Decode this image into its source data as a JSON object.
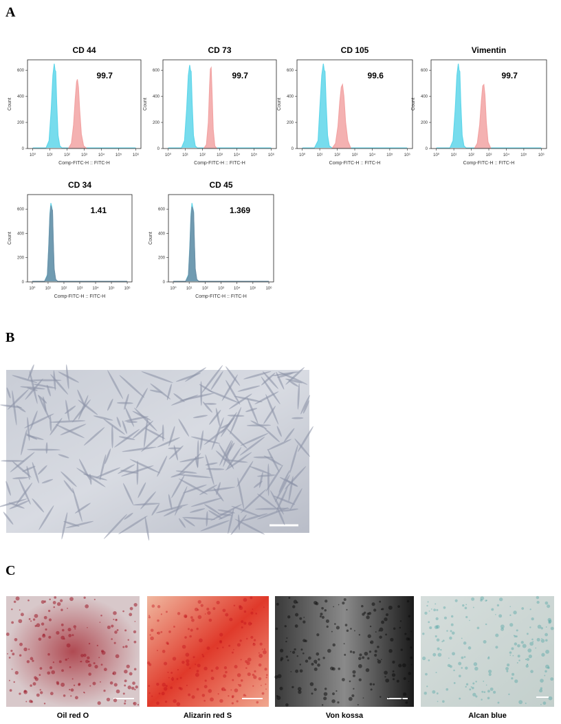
{
  "panels": {
    "a": {
      "label": "A"
    },
    "b": {
      "label": "B"
    },
    "c": {
      "label": "C",
      "captions": [
        "Oil red O",
        "Alizarin red S",
        "Von kossa",
        "Alcan blue"
      ]
    }
  },
  "chart_data": [
    {
      "type": "histogram-overlay",
      "title": "CD 44",
      "annotation": "99.7",
      "x_label": "Comp-FITC-H :: FITC-H",
      "y_label": "Count",
      "x_log": true,
      "xlim": [
        0.5,
        2000000
      ],
      "ylim": [
        0,
        680
      ],
      "xticks": [
        {
          "value": 1,
          "label": "10⁰"
        },
        {
          "value": 10,
          "label": "10¹"
        },
        {
          "value": 100,
          "label": "10²"
        },
        {
          "value": 1000,
          "label": "10³"
        },
        {
          "value": 10000,
          "label": "10⁴"
        },
        {
          "value": 100000,
          "label": "10⁵"
        },
        {
          "value": 1000000,
          "label": "10⁶"
        }
      ],
      "yticks": [
        0,
        200,
        400,
        600
      ],
      "series": [
        {
          "color": "#5fd6ea",
          "x": [
            1,
            6,
            9,
            12,
            15,
            18,
            20,
            22,
            25,
            30,
            38,
            50,
            1000000
          ],
          "values": [
            5,
            5,
            60,
            300,
            560,
            650,
            600,
            590,
            350,
            100,
            20,
            5,
            5
          ]
        },
        {
          "color": "#f2a3a3",
          "x": [
            120,
            180,
            240,
            300,
            360,
            400,
            460,
            540,
            680,
            920,
            1400
          ],
          "values": [
            0,
            40,
            180,
            380,
            510,
            530,
            470,
            300,
            110,
            20,
            0
          ]
        }
      ]
    },
    {
      "type": "histogram-overlay",
      "title": "CD 73",
      "annotation": "99.7",
      "x_label": "Comp-FITC-H :: FITC-H",
      "y_label": "Count",
      "x_log": true,
      "xlim": [
        0.5,
        2000000
      ],
      "ylim": [
        0,
        680
      ],
      "xticks": [
        {
          "value": 1,
          "label": "10⁰"
        },
        {
          "value": 10,
          "label": "10¹"
        },
        {
          "value": 100,
          "label": "10²"
        },
        {
          "value": 1000,
          "label": "10³"
        },
        {
          "value": 10000,
          "label": "10⁴"
        },
        {
          "value": 100000,
          "label": "10⁵"
        },
        {
          "value": 1000000,
          "label": "10⁶"
        }
      ],
      "yticks": [
        0,
        200,
        400,
        600
      ],
      "series": [
        {
          "color": "#5fd6ea",
          "x": [
            1,
            6,
            9,
            12,
            15,
            18,
            20,
            22,
            25,
            30,
            38,
            50,
            1000000
          ],
          "values": [
            5,
            5,
            60,
            300,
            560,
            640,
            600,
            590,
            350,
            100,
            20,
            5,
            5
          ]
        },
        {
          "color": "#f2a3a3",
          "x": [
            120,
            170,
            220,
            260,
            290,
            320,
            360,
            420,
            520,
            700
          ],
          "values": [
            0,
            30,
            200,
            480,
            610,
            620,
            430,
            150,
            20,
            0
          ]
        }
      ]
    },
    {
      "type": "histogram-overlay",
      "title": "CD 105",
      "annotation": "99.6",
      "x_label": "Comp-FITC-H :: FITC-H",
      "y_label": "Count",
      "x_log": true,
      "xlim": [
        0.5,
        2000000
      ],
      "ylim": [
        0,
        680
      ],
      "xticks": [
        {
          "value": 1,
          "label": "10⁰"
        },
        {
          "value": 10,
          "label": "10¹"
        },
        {
          "value": 100,
          "label": "10²"
        },
        {
          "value": 1000,
          "label": "10³"
        },
        {
          "value": 10000,
          "label": "10⁴"
        },
        {
          "value": 100000,
          "label": "10⁵"
        },
        {
          "value": 1000000,
          "label": "10⁶"
        }
      ],
      "yticks": [
        0,
        200,
        400,
        600
      ],
      "series": [
        {
          "color": "#5fd6ea",
          "x": [
            1,
            5,
            8,
            10,
            13,
            16,
            18,
            20,
            23,
            28,
            35,
            50,
            1000000
          ],
          "values": [
            5,
            5,
            60,
            300,
            560,
            650,
            600,
            590,
            350,
            100,
            20,
            5,
            5
          ]
        },
        {
          "color": "#f2a3a3",
          "x": [
            50,
            80,
            110,
            140,
            170,
            200,
            240,
            300,
            400,
            600
          ],
          "values": [
            0,
            40,
            170,
            360,
            470,
            490,
            400,
            200,
            60,
            0
          ]
        }
      ]
    },
    {
      "type": "histogram-overlay",
      "title": "Vimentin",
      "annotation": "99.7",
      "x_label": "Comp-FITC-H :: FITC-H",
      "y_label": "Count",
      "x_log": true,
      "xlim": [
        0.5,
        2000000
      ],
      "ylim": [
        0,
        680
      ],
      "xticks": [
        {
          "value": 1,
          "label": "10⁰"
        },
        {
          "value": 10,
          "label": "10¹"
        },
        {
          "value": 100,
          "label": "10²"
        },
        {
          "value": 1000,
          "label": "10³"
        },
        {
          "value": 10000,
          "label": "10⁴"
        },
        {
          "value": 100000,
          "label": "10⁵"
        },
        {
          "value": 1000000,
          "label": "10⁶"
        }
      ],
      "yticks": [
        0,
        200,
        400,
        600
      ],
      "series": [
        {
          "color": "#5fd6ea",
          "x": [
            1,
            6,
            9,
            12,
            15,
            18,
            20,
            22,
            25,
            30,
            38,
            50,
            1000000
          ],
          "values": [
            5,
            5,
            60,
            300,
            560,
            650,
            600,
            590,
            350,
            100,
            20,
            5,
            5
          ]
        },
        {
          "color": "#f2a3a3",
          "x": [
            150,
            220,
            300,
            380,
            450,
            520,
            600,
            720,
            900,
            1300
          ],
          "values": [
            0,
            40,
            180,
            370,
            480,
            490,
            410,
            200,
            50,
            0
          ]
        }
      ]
    },
    {
      "type": "histogram-overlay",
      "title": "CD 34",
      "annotation": "1.41",
      "x_label": "Comp-FITC-H :: FITC-H",
      "y_label": "Count",
      "x_log": true,
      "xlim": [
        0.5,
        2000000
      ],
      "ylim": [
        0,
        720
      ],
      "xticks": [
        {
          "value": 1,
          "label": "10⁰"
        },
        {
          "value": 10,
          "label": "10¹"
        },
        {
          "value": 100,
          "label": "10²"
        },
        {
          "value": 1000,
          "label": "10³"
        },
        {
          "value": 10000,
          "label": "10⁴"
        },
        {
          "value": 100000,
          "label": "10⁵"
        },
        {
          "value": 1000000,
          "label": "10⁶"
        }
      ],
      "yticks": [
        0,
        200,
        400,
        600
      ],
      "series": [
        {
          "color": "#5fd6ea",
          "x": [
            1,
            6,
            9,
            11,
            13,
            15,
            17,
            19,
            21,
            24,
            30,
            40,
            1000000
          ],
          "values": [
            5,
            5,
            60,
            300,
            560,
            650,
            620,
            580,
            350,
            100,
            20,
            5,
            5
          ]
        },
        {
          "color": "#6e8fa6",
          "x": [
            1,
            6,
            9,
            11,
            13,
            15,
            17,
            19,
            21,
            24,
            30,
            40,
            1000000
          ],
          "values": [
            5,
            5,
            50,
            280,
            540,
            630,
            600,
            590,
            360,
            110,
            20,
            5,
            5
          ]
        }
      ]
    },
    {
      "type": "histogram-overlay",
      "title": "CD 45",
      "annotation": "1.369",
      "x_label": "Comp-FITC-H :: FITC-H",
      "y_label": "Count",
      "x_log": true,
      "xlim": [
        0.5,
        2000000
      ],
      "ylim": [
        0,
        720
      ],
      "xticks": [
        {
          "value": 1,
          "label": "10⁰"
        },
        {
          "value": 10,
          "label": "10¹"
        },
        {
          "value": 100,
          "label": "10²"
        },
        {
          "value": 1000,
          "label": "10³"
        },
        {
          "value": 10000,
          "label": "10⁴"
        },
        {
          "value": 100000,
          "label": "10⁵"
        },
        {
          "value": 1000000,
          "label": "10⁶"
        }
      ],
      "yticks": [
        0,
        200,
        400,
        600
      ],
      "series": [
        {
          "color": "#5fd6ea",
          "x": [
            1,
            6,
            9,
            11,
            13,
            15,
            17,
            19,
            21,
            24,
            30,
            40,
            1000000
          ],
          "values": [
            5,
            5,
            60,
            300,
            560,
            650,
            610,
            580,
            340,
            100,
            20,
            5,
            5
          ]
        },
        {
          "color": "#6e8fa6",
          "x": [
            1,
            6,
            9,
            11,
            13,
            15,
            17,
            19,
            21,
            24,
            30,
            40,
            1000000
          ],
          "values": [
            5,
            5,
            50,
            270,
            530,
            620,
            600,
            570,
            350,
            110,
            20,
            5,
            5
          ]
        }
      ]
    }
  ]
}
